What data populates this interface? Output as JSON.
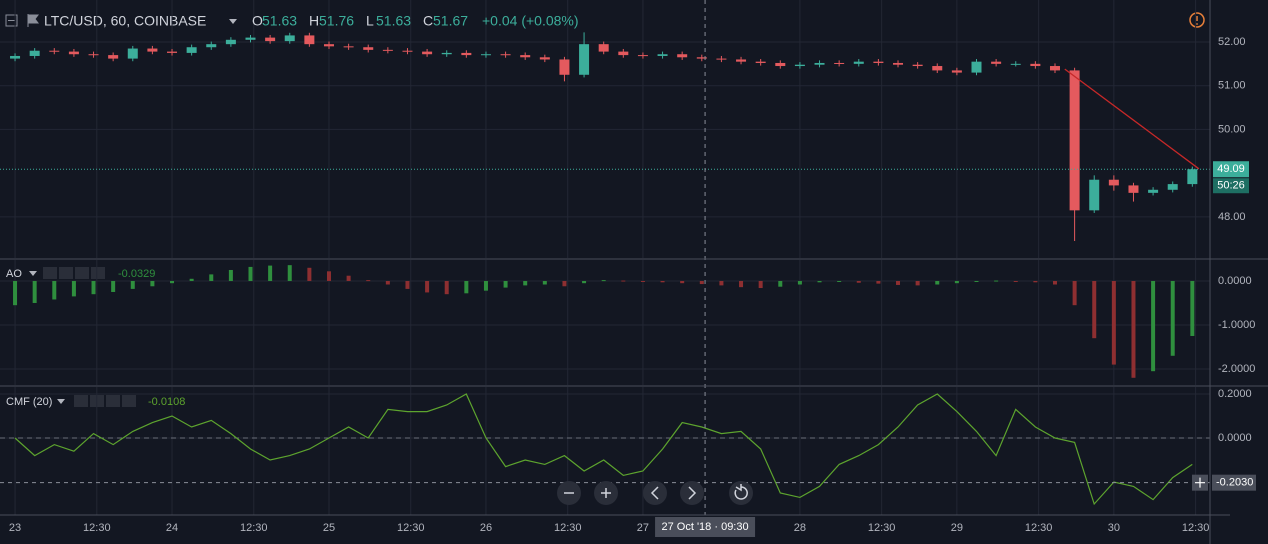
{
  "chart_data": [
    {
      "type": "candlestick",
      "title": "LTC/USD, 60, COINBASE",
      "ohlc": [
        {
          "label": "O",
          "value": 51.63
        },
        {
          "label": "H",
          "value": 51.76
        },
        {
          "label": "L",
          "value": 51.63
        },
        {
          "label": "C",
          "value": 51.67
        }
      ],
      "change": "+0.04 (+0.08%)",
      "x": [
        0,
        3,
        6,
        9,
        12,
        15,
        18,
        21,
        24,
        27,
        30,
        33,
        36,
        39,
        42,
        45,
        48,
        51,
        54,
        57,
        60,
        63,
        66,
        69,
        72,
        75,
        78,
        81,
        84,
        87,
        90,
        93,
        96,
        99,
        102,
        105,
        108,
        111,
        114,
        117,
        120,
        123,
        126,
        129,
        132,
        135,
        138,
        141,
        144,
        147,
        150,
        153,
        156,
        159,
        162,
        165,
        168,
        171,
        174,
        177,
        180
      ],
      "open": [
        51.62,
        51.68,
        51.8,
        51.78,
        51.72,
        51.7,
        51.62,
        51.85,
        51.78,
        51.75,
        51.88,
        51.95,
        52.05,
        52.1,
        52.02,
        52.15,
        51.95,
        51.9,
        51.88,
        51.82,
        51.8,
        51.78,
        51.72,
        51.75,
        51.7,
        51.72,
        51.7,
        51.65,
        51.6,
        51.25,
        51.95,
        51.78,
        51.7,
        51.68,
        51.72,
        51.65,
        51.62,
        51.6,
        51.55,
        51.52,
        51.45,
        51.48,
        51.52,
        51.5,
        51.55,
        51.52,
        51.48,
        51.45,
        51.35,
        51.3,
        51.55,
        51.5,
        51.5,
        51.45,
        51.35,
        48.15,
        48.85,
        48.72,
        48.55,
        48.62,
        48.75
      ],
      "high": [
        51.74,
        51.86,
        51.86,
        51.84,
        51.78,
        51.76,
        51.91,
        51.91,
        51.84,
        51.94,
        52.01,
        52.11,
        52.16,
        52.16,
        52.21,
        52.21,
        52.01,
        51.96,
        51.94,
        51.88,
        51.86,
        51.84,
        51.81,
        51.81,
        51.78,
        51.78,
        51.76,
        51.71,
        51.66,
        52.22,
        52.01,
        51.84,
        51.76,
        51.78,
        51.78,
        51.71,
        51.68,
        51.66,
        51.61,
        51.58,
        51.54,
        51.58,
        51.58,
        51.61,
        51.61,
        51.58,
        51.54,
        51.51,
        51.41,
        51.61,
        51.61,
        51.56,
        51.56,
        51.51,
        51.41,
        48.95,
        48.95,
        48.78,
        48.68,
        48.81,
        49.15
      ],
      "low": [
        51.56,
        51.62,
        51.72,
        51.66,
        51.64,
        51.56,
        51.56,
        51.72,
        51.69,
        51.69,
        51.82,
        51.89,
        51.99,
        51.96,
        51.96,
        51.89,
        51.84,
        51.82,
        51.76,
        51.74,
        51.72,
        51.66,
        51.66,
        51.64,
        51.64,
        51.64,
        51.59,
        51.54,
        51.1,
        51.19,
        51.72,
        51.64,
        51.62,
        51.62,
        51.59,
        51.56,
        51.54,
        51.49,
        51.46,
        51.39,
        51.39,
        51.42,
        51.44,
        51.44,
        51.46,
        51.42,
        51.39,
        51.29,
        51.24,
        51.24,
        51.44,
        51.44,
        51.39,
        51.29,
        47.45,
        48.09,
        48.6,
        48.35,
        48.49,
        48.56,
        48.69
      ],
      "close": [
        51.68,
        51.8,
        51.78,
        51.72,
        51.7,
        51.62,
        51.85,
        51.78,
        51.75,
        51.88,
        51.95,
        52.05,
        52.1,
        52.02,
        52.15,
        51.95,
        51.9,
        51.88,
        51.82,
        51.8,
        51.78,
        51.72,
        51.75,
        51.7,
        51.72,
        51.7,
        51.65,
        51.6,
        51.25,
        51.95,
        51.78,
        51.7,
        51.68,
        51.72,
        51.65,
        51.62,
        51.6,
        51.55,
        51.52,
        51.45,
        51.48,
        51.52,
        51.5,
        51.55,
        51.52,
        51.48,
        51.45,
        51.35,
        51.3,
        51.55,
        51.5,
        51.5,
        51.45,
        51.35,
        48.15,
        48.85,
        48.72,
        48.55,
        48.62,
        48.75,
        49.09
      ],
      "up_color": "#3cae9b",
      "down_color": "#e45a5e",
      "xlim": [
        -2.3,
        182.7
      ],
      "ylim": [
        47.06,
        52.96
      ],
      "xticks": [
        {
          "value": 0,
          "label": "23"
        },
        {
          "value": 12.5,
          "label": "12:30"
        },
        {
          "value": 24,
          "label": "24"
        },
        {
          "value": 36.5,
          "label": "12:30"
        },
        {
          "value": 48,
          "label": "25"
        },
        {
          "value": 60.5,
          "label": "12:30"
        },
        {
          "value": 72,
          "label": "26"
        },
        {
          "value": 84.5,
          "label": "12:30"
        },
        {
          "value": 96,
          "label": "27"
        },
        {
          "value": 120,
          "label": "28"
        },
        {
          "value": 132.5,
          "label": "12:30"
        },
        {
          "value": 144,
          "label": "29"
        },
        {
          "value": 156.5,
          "label": "12:30"
        },
        {
          "value": 168,
          "label": "30"
        },
        {
          "value": 180.5,
          "label": "12:30"
        }
      ],
      "yticks": [
        {
          "value": 48,
          "label": "48.00"
        },
        {
          "value": 50,
          "label": "50.00"
        },
        {
          "value": 51,
          "label": "51.00"
        },
        {
          "value": 52,
          "label": "52.00"
        }
      ],
      "last_price": 49.09,
      "countdown": "50:26",
      "trendline": {
        "x": [
          160.5,
          181
        ],
        "y": [
          51.38,
          49.1
        ],
        "color": "#c62828"
      }
    },
    {
      "type": "bar",
      "title": "AO",
      "current": -0.0329,
      "x": [
        0,
        3,
        6,
        9,
        12,
        15,
        18,
        21,
        24,
        27,
        30,
        33,
        36,
        39,
        42,
        45,
        48,
        51,
        54,
        57,
        60,
        63,
        66,
        69,
        72,
        75,
        78,
        81,
        84,
        87,
        90,
        93,
        96,
        99,
        102,
        105,
        108,
        111,
        114,
        117,
        120,
        123,
        126,
        129,
        132,
        135,
        138,
        141,
        144,
        147,
        150,
        153,
        156,
        159,
        162,
        165,
        168,
        171,
        174,
        177,
        180
      ],
      "values": [
        -0.55,
        -0.5,
        -0.42,
        -0.35,
        -0.3,
        -0.25,
        -0.18,
        -0.12,
        -0.05,
        0.05,
        0.15,
        0.25,
        0.32,
        0.35,
        0.36,
        0.3,
        0.22,
        0.12,
        0.02,
        -0.08,
        -0.18,
        -0.26,
        -0.3,
        -0.28,
        -0.22,
        -0.15,
        -0.1,
        -0.08,
        -0.12,
        -0.05,
        0.02,
        0.01,
        -0.02,
        -0.03,
        -0.05,
        -0.07,
        -0.1,
        -0.14,
        -0.16,
        -0.13,
        -0.08,
        -0.03,
        -0.02,
        -0.04,
        -0.06,
        -0.09,
        -0.1,
        -0.08,
        -0.05,
        -0.02,
        0.01,
        0.0,
        -0.03,
        -0.08,
        -0.55,
        -1.3,
        -1.9,
        -2.2,
        -2.05,
        -1.7,
        -1.25
      ],
      "up_color": "#2f8f3e",
      "down_color": "#8e2f31",
      "xlim": [
        -2.3,
        182.7
      ],
      "ylim": [
        -2.364,
        0.477
      ],
      "yticks": [
        {
          "value": 0,
          "label": "0.0000"
        },
        {
          "value": -1,
          "label": "-1.0000"
        },
        {
          "value": -2,
          "label": "-2.0000"
        }
      ]
    },
    {
      "type": "line",
      "title": "CMF (20)",
      "current": -0.0108,
      "color": "#5da42e",
      "x": [
        0,
        3,
        6,
        9,
        12,
        15,
        18,
        21,
        24,
        27,
        30,
        33,
        36,
        39,
        42,
        45,
        48,
        51,
        54,
        57,
        60,
        63,
        66,
        69,
        72,
        75,
        78,
        81,
        84,
        87,
        90,
        93,
        96,
        99,
        102,
        105,
        108,
        111,
        114,
        117,
        120,
        123,
        126,
        129,
        132,
        135,
        138,
        141,
        144,
        147,
        150,
        153,
        156,
        159,
        162,
        165,
        168,
        171,
        174,
        177,
        180
      ],
      "values": [
        0.0,
        -0.08,
        -0.03,
        -0.06,
        0.02,
        -0.03,
        0.03,
        0.07,
        0.1,
        0.05,
        0.08,
        0.02,
        -0.05,
        -0.1,
        -0.08,
        -0.05,
        0.0,
        0.05,
        0.0,
        0.13,
        0.12,
        0.12,
        0.15,
        0.2,
        0.0,
        -0.13,
        -0.1,
        -0.12,
        -0.08,
        -0.15,
        -0.1,
        -0.17,
        -0.15,
        -0.05,
        0.07,
        0.05,
        0.02,
        0.03,
        -0.05,
        -0.25,
        -0.27,
        -0.22,
        -0.12,
        -0.08,
        -0.03,
        0.05,
        0.15,
        0.2,
        0.12,
        0.03,
        -0.08,
        0.13,
        0.05,
        0.0,
        -0.02,
        -0.3,
        -0.2,
        -0.22,
        -0.28,
        -0.18,
        -0.12
      ],
      "xlim": [
        -2.3,
        182.7
      ],
      "ylim": [
        -0.35,
        0.232
      ],
      "yticks": [
        {
          "value": 0.2,
          "label": "0.2000"
        },
        {
          "value": 0,
          "label": "0.0000"
        }
      ]
    }
  ],
  "crosshair": {
    "x": {
      "value": 105.5,
      "label": "27 Oct '18 · 09:30"
    },
    "y": {
      "value": -0.203,
      "label": "-0.2030"
    }
  }
}
